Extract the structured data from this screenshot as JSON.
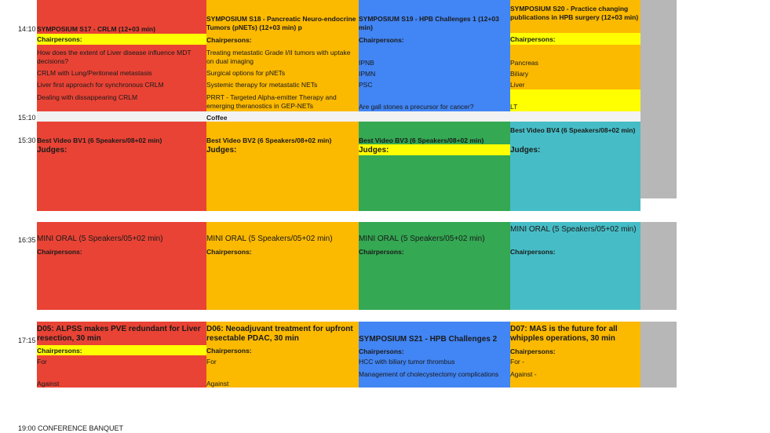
{
  "colors": {
    "red": "#e94335",
    "orange": "#fbb900",
    "blue": "#4285f4",
    "green": "#34a853",
    "teal": "#46bdc6",
    "gray": "#b7b7b7",
    "yellow": "#ffff00",
    "coffee_bg": "#f2f2f2"
  },
  "times": {
    "t1410": "14:10",
    "t1510": "15:10",
    "t1530": "15:30",
    "t1635": "16:35",
    "t1715": "17:15",
    "t1900": "19:00"
  },
  "row1": {
    "s17": {
      "title": "SYMPOSIUM  S17 - CRLM  (12+03 min)",
      "chair": "Chairpersons:",
      "items": [
        "How does the extent  of Liver disease influence MDT decisions?",
        "CRLM  with Lung/Peritoneal metastasis",
        "Liver first approach for synchronous CRLM",
        "Dealing with dissappearing CRLM"
      ]
    },
    "s18": {
      "title": "SYMPOSIUM  S18 - Pancreatic Neuro-endocrine Tumors (pNETs) (12+03 min) p",
      "chair": "Chairpersons:",
      "items": [
        "Treating metastatic Grade I/II tumors with uptake on dual imaging",
        "Surgical options for pNETs",
        "Systemic therapy for metastatic NETs",
        "PRRT - Targeted Alpha-emitter Therapy and emerging theranostics in GEP-NETs"
      ]
    },
    "s19": {
      "title": "SYMPOSIUM  S19 - HPB Challenges  1 (12+03 min)",
      "chair": "Chairpersons:",
      "items": [
        "IPNB",
        "IPMN",
        "PSC",
        "Are gall stones a precursor for cancer?"
      ]
    },
    "s20": {
      "title": "SYMPOSIUM  S20 - Practice changing publications  in HPB surgery (12+03 min)",
      "chair": "Chairpersons:",
      "items": [
        "Pancreas",
        "Biliary",
        "Liver",
        "LT"
      ]
    }
  },
  "coffee": {
    "label": "Coffee"
  },
  "row2": {
    "bv1": {
      "title": "Best Video BV1 (6 Speakers/08+02 min)",
      "judges": "Judges:"
    },
    "bv2": {
      "title": "Best Video BV2 (6 Speakers/08+02 min)",
      "judges": "Judges:"
    },
    "bv3": {
      "title": "Best Video BV3 (6 Speakers/08+02 min)",
      "judges": "Judges:"
    },
    "bv4": {
      "title": "Best Video BV4 (6 Speakers/08+02 min)",
      "judges": "Judges:"
    }
  },
  "row3": {
    "m1": {
      "title": "MINI ORAL  (5  Speakers/05+02 min)",
      "chair": "Chairpersons:"
    },
    "m2": {
      "title": "MINI ORAL  (5  Speakers/05+02 min)",
      "chair": "Chairpersons:"
    },
    "m3": {
      "title": "MINI ORAL  (5  Speakers/05+02 min)",
      "chair": "Chairpersons:"
    },
    "m4": {
      "title": "MINI ORAL  (5  Speakers/05+02 min)",
      "chair": "Chairpersons:"
    }
  },
  "row4": {
    "d05": {
      "title": "D05: ALPSS makes PVE redundant for Liver resection, 30 min",
      "chair": "Chairpersons:",
      "for": "For",
      "against": "Against"
    },
    "d06": {
      "title": "D06: Neoadjuvant treatment for upfront resectable PDAC, 30 min",
      "chair": "Chairpersons:",
      "for": "For",
      "against": "Against"
    },
    "s21": {
      "title": "SYMPOSIUM  S21 - HPB Challenges 2",
      "chair": "Chairpersons:",
      "items": [
        "HCC  with biliary tumor thrombus",
        "Management of cholecystectomy complications"
      ]
    },
    "d07": {
      "title": "D07: MAS is the future for all whipples operations, 30 min",
      "chair": "Chairpersons:",
      "for": "For -",
      "against": "Against -"
    }
  },
  "banquet": {
    "label": "CONFERENCE  BANQUET"
  }
}
